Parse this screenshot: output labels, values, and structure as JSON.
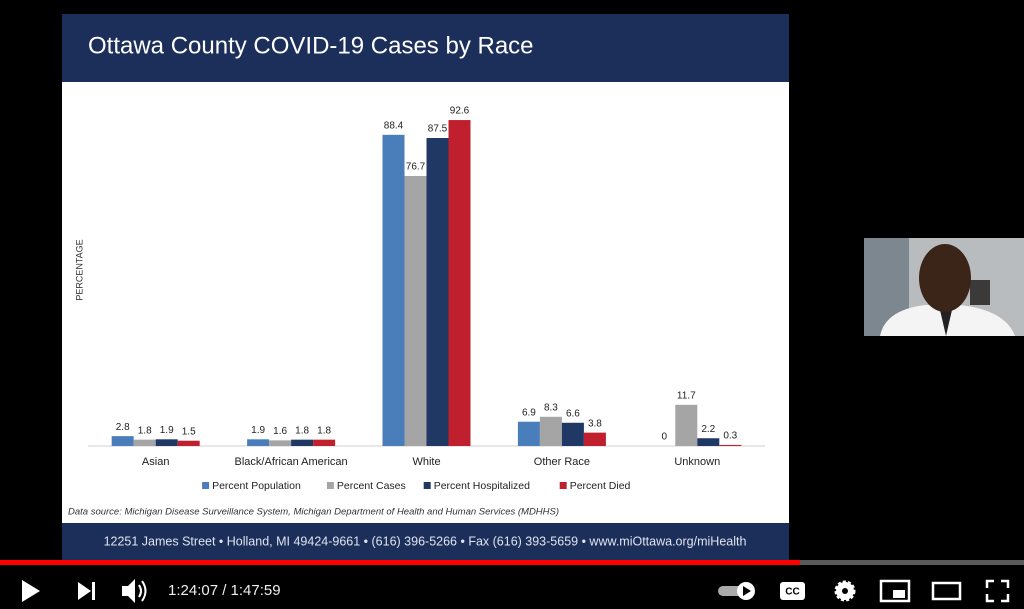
{
  "chart_data": {
    "type": "bar",
    "title": "Ottawa County COVID-19 Cases by Race",
    "y_label": "PERCENTAGE",
    "categories": [
      "Asian",
      "Black/African American",
      "White",
      "Other Race",
      "Unknown"
    ],
    "series": [
      {
        "name": "Percent Population",
        "color": "#4a7ebb",
        "values": [
          2.8,
          1.9,
          88.4,
          6.9,
          0
        ]
      },
      {
        "name": "Percent Cases",
        "color": "#a5a5a5",
        "values": [
          1.8,
          1.6,
          76.7,
          8.3,
          11.7
        ]
      },
      {
        "name": "Percent Hospitalized",
        "color": "#1f3864",
        "values": [
          1.9,
          1.8,
          87.5,
          6.6,
          2.2
        ]
      },
      {
        "name": "Percent Died",
        "color": "#c0202e",
        "values": [
          1.5,
          1.8,
          92.6,
          3.8,
          0.3
        ]
      }
    ],
    "ylim": [
      0,
      100
    ],
    "legend": "bottom"
  },
  "slide": {
    "source": "Data source: Michigan Disease Surveillance System, Michigan Department of Health and Human Services (MDHHS)",
    "footer": "12251 James Street • Holland, MI 49424-9661 • (616) 396-5266 • Fax (616) 393-5659 • www.miOttawa.org/miHealth"
  },
  "player": {
    "time": "1:24:07 / 1:47:59"
  }
}
